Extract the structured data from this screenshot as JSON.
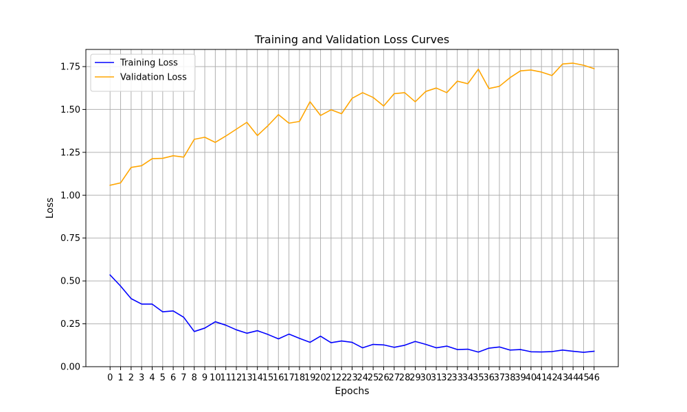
{
  "chart_data": {
    "type": "line",
    "title": "Training and Validation Loss Curves",
    "xlabel": "Epochs",
    "ylabel": "Loss",
    "x": [
      0,
      1,
      2,
      3,
      4,
      5,
      6,
      7,
      8,
      9,
      10,
      11,
      12,
      13,
      14,
      15,
      16,
      17,
      18,
      19,
      20,
      21,
      22,
      23,
      24,
      25,
      26,
      27,
      28,
      29,
      30,
      31,
      32,
      33,
      34,
      35,
      36,
      37,
      38,
      39,
      40,
      41,
      42,
      43,
      44,
      45,
      46
    ],
    "xlim": [
      -2.3,
      48.3
    ],
    "ylim": [
      0,
      1.85
    ],
    "yticks": [
      0.0,
      0.25,
      0.5,
      0.75,
      1.0,
      1.25,
      1.5,
      1.75
    ],
    "grid": true,
    "legend_position": "upper left",
    "series": [
      {
        "name": "Training Loss",
        "color": "#0000ff",
        "values": [
          0.535,
          0.47,
          0.397,
          0.365,
          0.365,
          0.32,
          0.325,
          0.288,
          0.205,
          0.225,
          0.262,
          0.242,
          0.215,
          0.195,
          0.21,
          0.188,
          0.162,
          0.19,
          0.165,
          0.142,
          0.178,
          0.14,
          0.15,
          0.142,
          0.11,
          0.13,
          0.127,
          0.113,
          0.125,
          0.147,
          0.13,
          0.11,
          0.12,
          0.1,
          0.102,
          0.085,
          0.108,
          0.115,
          0.097,
          0.1,
          0.087,
          0.086,
          0.088,
          0.097,
          0.09,
          0.084,
          0.09
        ]
      },
      {
        "name": "Validation Loss",
        "color": "#ffa500",
        "values": [
          1.058,
          1.072,
          1.162,
          1.172,
          1.213,
          1.215,
          1.23,
          1.222,
          1.326,
          1.338,
          1.308,
          1.345,
          1.385,
          1.425,
          1.348,
          1.405,
          1.47,
          1.42,
          1.43,
          1.545,
          1.465,
          1.498,
          1.475,
          1.565,
          1.598,
          1.57,
          1.52,
          1.592,
          1.598,
          1.545,
          1.605,
          1.625,
          1.598,
          1.665,
          1.65,
          1.735,
          1.622,
          1.635,
          1.685,
          1.725,
          1.73,
          1.718,
          1.698,
          1.765,
          1.77,
          1.758,
          1.738
        ]
      }
    ]
  }
}
